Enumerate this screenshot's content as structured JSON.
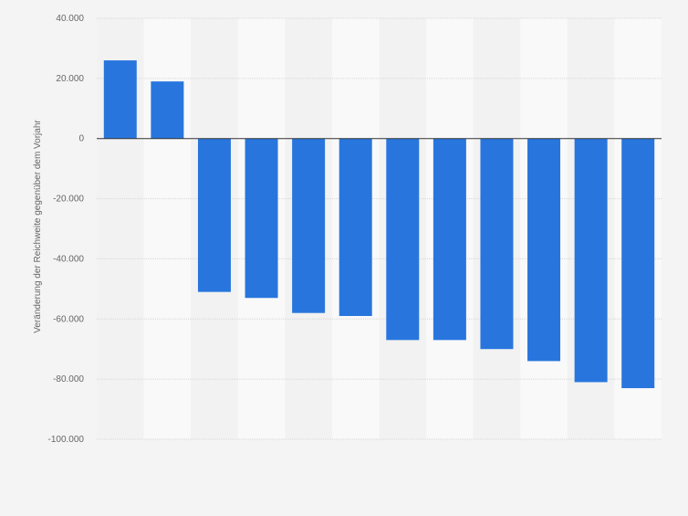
{
  "chart_data": {
    "type": "bar",
    "title": "",
    "xlabel": "",
    "ylabel": "Veränderung der Reichweite gegenüber dem Vorjahr",
    "categories": [
      "",
      "",
      "",
      "",
      "",
      "",
      "",
      "",
      "",
      "",
      "",
      ""
    ],
    "values": [
      26000,
      19000,
      -51000,
      -53000,
      -58000,
      -59000,
      -67000,
      -67000,
      -70000,
      -74000,
      -81000,
      -83000
    ],
    "ylim": [
      -100000,
      40000
    ],
    "yticks": [
      40000,
      20000,
      0,
      -20000,
      -40000,
      -60000,
      -80000,
      -100000
    ],
    "ytick_labels": [
      "40.000",
      "20.000",
      "0",
      "-20.000",
      "-40.000",
      "-60.000",
      "-80.000",
      "-100.000"
    ],
    "grid": true,
    "legend": "none",
    "colors": {
      "bar": "#2876dd",
      "background": "#f4f4f4",
      "band_light": "#f9f9f9",
      "band_dark": "#f2f2f2",
      "grid": "#d6d6d6",
      "zero_line": "#333333",
      "tick_text": "#666666"
    }
  }
}
